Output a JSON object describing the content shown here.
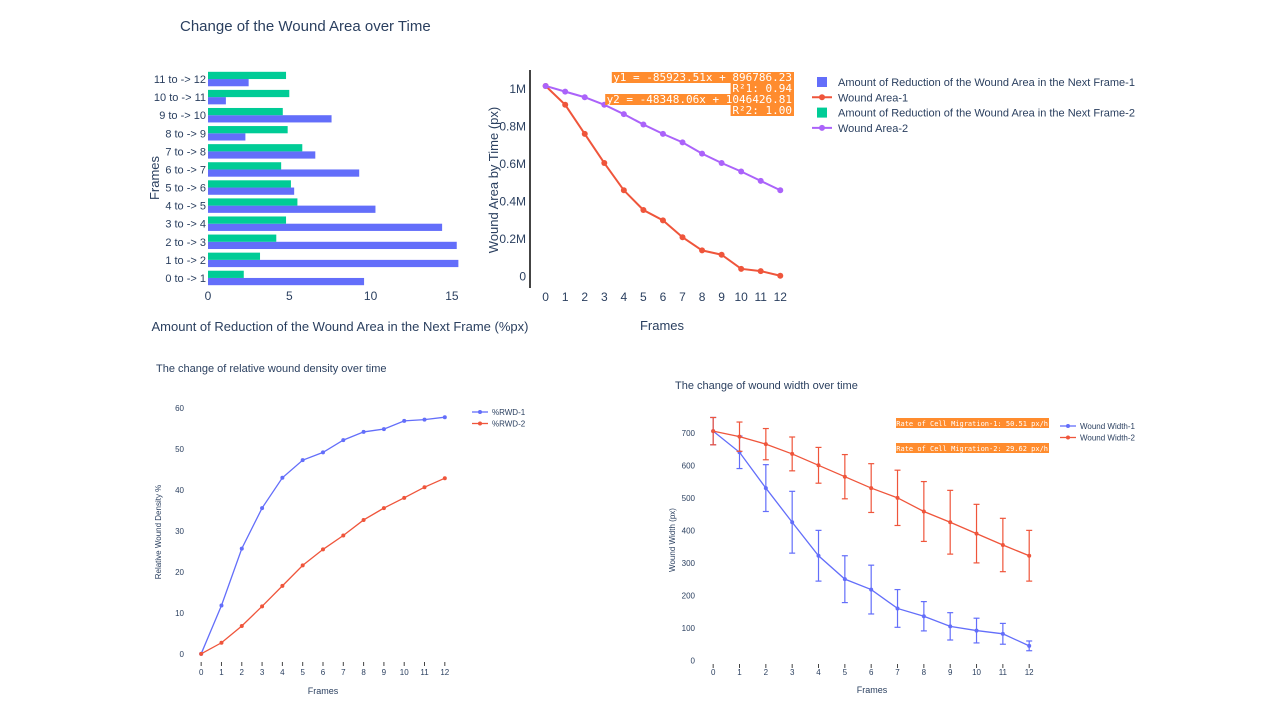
{
  "figure": {
    "title": "Change of the Wound Area over Time"
  },
  "chart_data": [
    {
      "id": "reduction_bar",
      "type": "bar",
      "orientation": "horizontal",
      "title": "",
      "xlabel": "Amount of Reduction of the Wound Area in the Next Frame (%px)",
      "ylabel": "Frames",
      "xlim": [
        0,
        15.5
      ],
      "xticks": [
        0,
        5,
        10,
        15
      ],
      "categories": [
        "0 to -> 1",
        "1 to -> 2",
        "2 to -> 3",
        "3 to -> 4",
        "4 to -> 5",
        "5 to -> 6",
        "6 to -> 7",
        "7 to -> 8",
        "8 to -> 9",
        "9 to -> 10",
        "10 to -> 11",
        "11 to -> 12"
      ],
      "series": [
        {
          "name": "Amount of Reduction of the Wound Area in the Next Frame-1",
          "color": "#636efa",
          "values": [
            9.6,
            15.4,
            15.3,
            14.4,
            10.3,
            5.3,
            9.3,
            6.6,
            2.3,
            7.6,
            1.1,
            2.5
          ]
        },
        {
          "name": "Amount of Reduction of the Wound Area in the Next Frame-2",
          "color": "#00cc96",
          "values": [
            2.2,
            3.2,
            4.2,
            4.8,
            5.5,
            5.1,
            4.5,
            5.8,
            4.9,
            4.6,
            5.0,
            4.8
          ]
        }
      ],
      "grid": false
    },
    {
      "id": "area_line",
      "type": "line",
      "title": "",
      "xlabel": "Frames",
      "ylabel": "Wound Area by Time (px)",
      "x": [
        0,
        1,
        2,
        3,
        4,
        5,
        6,
        7,
        8,
        9,
        10,
        11,
        12
      ],
      "ylim": [
        -60000,
        1100000
      ],
      "yticks": [
        0,
        200000,
        400000,
        600000,
        800000,
        1000000
      ],
      "ytick_labels": [
        "0",
        "0.2M",
        "0.4M",
        "0.6M",
        "0.8M",
        "1M"
      ],
      "series": [
        {
          "name": "Wound Area-1",
          "color": "#ef553b",
          "values": [
            1015000,
            915000,
            760000,
            605000,
            460000,
            355000,
            300000,
            210000,
            140000,
            117000,
            42000,
            30000,
            5000
          ]
        },
        {
          "name": "Wound Area-2",
          "color": "#ab63fa",
          "values": [
            1015000,
            985000,
            955000,
            915000,
            865000,
            810000,
            760000,
            715000,
            655000,
            605000,
            560000,
            510000,
            460000
          ]
        }
      ],
      "annotations": [
        "y1 = -85923.51x + 896786.23",
        "R²1: 0.94",
        "y2 = -48348.06x + 1046426.81",
        "R²2: 1.00"
      ],
      "annotation_color": "#ff8c2e",
      "legend_position": "right",
      "grid": false
    },
    {
      "id": "density_line",
      "type": "line",
      "title": "The change of relative wound density over time",
      "xlabel": "Frames",
      "ylabel": "Relative Wound Density %",
      "x": [
        0,
        1,
        2,
        3,
        4,
        5,
        6,
        7,
        8,
        9,
        10,
        11,
        12
      ],
      "ylim": [
        -2,
        62
      ],
      "yticks": [
        0,
        10,
        20,
        30,
        40,
        50,
        60
      ],
      "series": [
        {
          "name": "%RWD-1",
          "color": "#636efa",
          "values": [
            0,
            11.8,
            25.7,
            35.6,
            43.0,
            47.3,
            49.2,
            52.2,
            54.2,
            54.9,
            56.9,
            57.2,
            57.8
          ]
        },
        {
          "name": "%RWD-2",
          "color": "#ef553b",
          "values": [
            0,
            2.7,
            6.8,
            11.6,
            16.6,
            21.6,
            25.5,
            28.9,
            32.7,
            35.6,
            38.1,
            40.7,
            42.9
          ]
        }
      ],
      "legend_position": "top-right",
      "grid": false
    },
    {
      "id": "width_line",
      "type": "line",
      "title": "The change of wound width over time",
      "xlabel": "Frames",
      "ylabel": "Wound Width (px)",
      "x": [
        0,
        1,
        2,
        3,
        4,
        5,
        6,
        7,
        8,
        9,
        10,
        11,
        12
      ],
      "ylim": [
        -20,
        770
      ],
      "yticks": [
        0,
        100,
        200,
        300,
        400,
        500,
        600,
        700
      ],
      "series": [
        {
          "name": "Wound Width-1",
          "color": "#636efa",
          "values": [
            705,
            640,
            530,
            425,
            322,
            250,
            218,
            160,
            136,
            105,
            92,
            82,
            45
          ],
          "errors": [
            42,
            50,
            72,
            95,
            78,
            72,
            75,
            58,
            45,
            42,
            38,
            32,
            15
          ]
        },
        {
          "name": "Wound Width-2",
          "color": "#ef553b",
          "values": [
            705,
            688,
            665,
            635,
            600,
            565,
            530,
            500,
            458,
            425,
            390,
            355,
            322
          ],
          "errors": [
            42,
            45,
            48,
            52,
            55,
            68,
            75,
            85,
            92,
            98,
            90,
            82,
            78
          ]
        }
      ],
      "annotations": [
        "Rate of Cell Migration-1: 50.51 px/h",
        "Rate of Cell Migration-2: 29.62 px/h"
      ],
      "annotation_color": "#ff8c2e",
      "legend_position": "top-right",
      "grid": false
    }
  ]
}
